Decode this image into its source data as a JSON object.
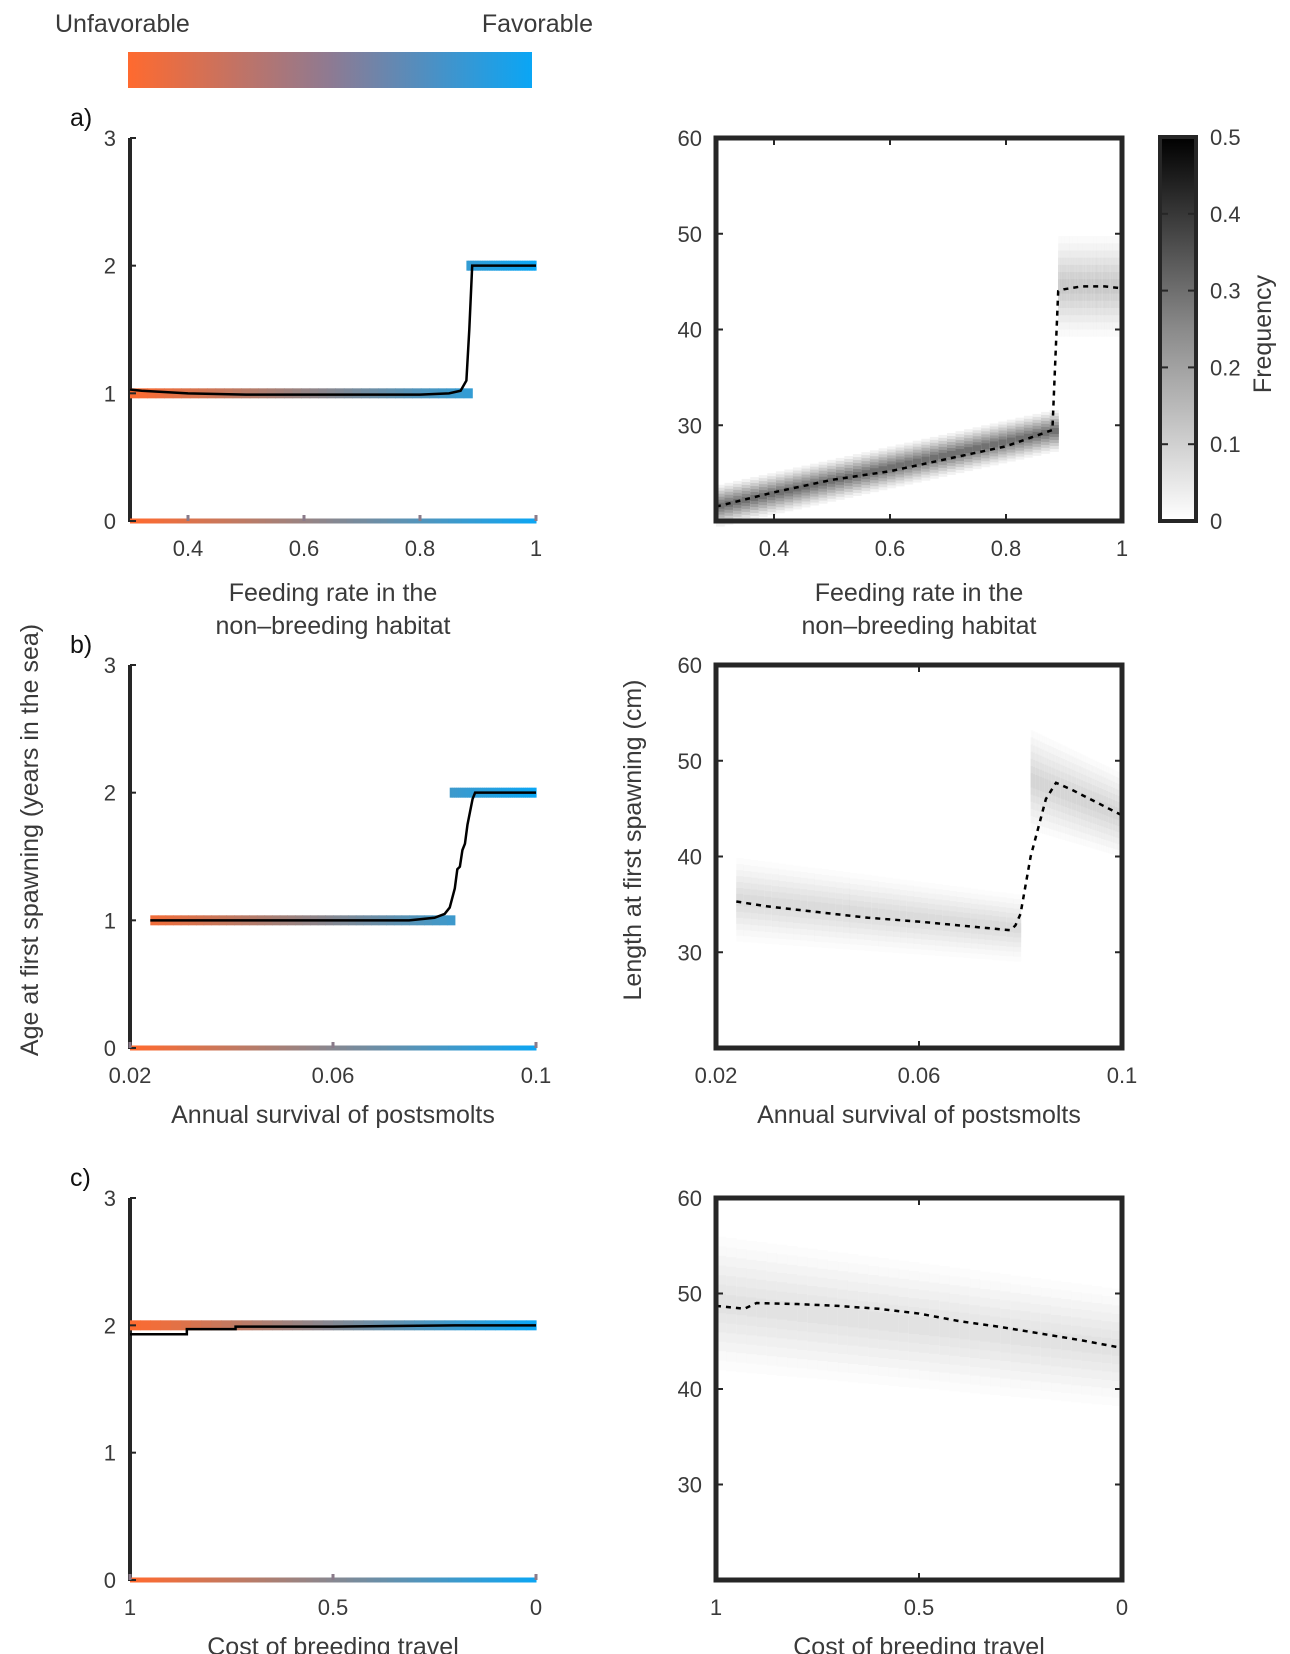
{
  "figure": {
    "favorability_scale": {
      "left_label": "Unfavorable",
      "right_label": "Favorable",
      "colors": {
        "unfavorable": "#ff6a2f",
        "favorable": "#0aa6f5"
      }
    },
    "shared_ylabel_left": "Age at first spawning (years in the sea)",
    "shared_ylabel_right": "Length at first spawning (cm)",
    "colorbar": {
      "label": "Frequency",
      "ticks": [
        "0",
        "0.1",
        "0.2",
        "0.3",
        "0.4",
        "0.5"
      ],
      "range": [
        0,
        0.5
      ],
      "colormap": "white-to-black"
    }
  },
  "chart_data": [
    {
      "id": "a-age",
      "panel_letter": "a)",
      "type": "line",
      "xlabel": [
        "Feeding rate in the",
        "non–breeding habitat"
      ],
      "ylabel": "",
      "xlim": [
        0.3,
        1
      ],
      "ylim": [
        0,
        3
      ],
      "xticks": [
        0.4,
        0.6,
        0.8,
        1
      ],
      "xtick_labels": [
        "0.4",
        "0.6",
        "0.8",
        "1"
      ],
      "yticks": [
        0,
        1,
        2,
        3
      ],
      "ytick_labels": [
        "0",
        "1",
        "2",
        "3"
      ],
      "bands": [
        {
          "y": 1,
          "x": [
            0.3,
            0.89
          ]
        },
        {
          "y": 2,
          "x": [
            0.88,
            1.0
          ]
        }
      ],
      "line": {
        "x": [
          0.3,
          0.32,
          0.4,
          0.5,
          0.6,
          0.7,
          0.8,
          0.85,
          0.87,
          0.88,
          0.885,
          0.89,
          1.0
        ],
        "y": [
          1.03,
          1.02,
          1.0,
          0.99,
          0.99,
          0.99,
          0.99,
          1.0,
          1.02,
          1.1,
          1.5,
          2.0,
          2.0
        ]
      }
    },
    {
      "id": "a-length",
      "type": "heatmap",
      "xlabel": [
        "Feeding rate in the",
        "non–breeding habitat"
      ],
      "ylabel": "",
      "xlim": [
        0.3,
        1
      ],
      "ylim": [
        20,
        60
      ],
      "xticks": [
        0.4,
        0.6,
        0.8,
        1
      ],
      "xtick_labels": [
        "0.4",
        "0.6",
        "0.8",
        "1"
      ],
      "yticks": [
        30,
        40,
        50,
        60
      ],
      "ytick_labels": [
        "30",
        "40",
        "50",
        "60"
      ],
      "mean_line": {
        "x": [
          0.3,
          0.4,
          0.5,
          0.6,
          0.7,
          0.8,
          0.88,
          0.89,
          0.9,
          0.93,
          0.97,
          1.0
        ],
        "y": [
          21.5,
          23.0,
          24.3,
          25.2,
          26.5,
          27.8,
          29.5,
          44.0,
          44.2,
          44.5,
          44.5,
          44.3
        ]
      },
      "density": [
        {
          "x": [
            0.3,
            0.89
          ],
          "center_y": [
            21.5,
            29.5
          ],
          "half_width": [
            2.5,
            2.5
          ],
          "peak": 0.4
        },
        {
          "x": [
            0.89,
            1.0
          ],
          "center_y": [
            44.5,
            44.5
          ],
          "half_width": [
            6,
            6
          ],
          "peak": 0.15
        }
      ]
    },
    {
      "id": "b-age",
      "panel_letter": "b)",
      "type": "line",
      "xlabel": [
        "Annual survival of postsmolts"
      ],
      "ylabel": "",
      "xlim": [
        0.02,
        0.1
      ],
      "ylim": [
        0,
        3
      ],
      "xticks": [
        0.02,
        0.06,
        0.1
      ],
      "xtick_labels": [
        "0.02",
        "0.06",
        "0.1"
      ],
      "yticks": [
        0,
        1,
        2,
        3
      ],
      "ytick_labels": [
        "0",
        "1",
        "2",
        "3"
      ],
      "bands": [
        {
          "y": 1,
          "x": [
            0.024,
            0.084
          ]
        },
        {
          "y": 2,
          "x": [
            0.083,
            0.1
          ]
        }
      ],
      "line": {
        "x": [
          0.024,
          0.05,
          0.075,
          0.08,
          0.082,
          0.083,
          0.084,
          0.0845,
          0.085,
          0.0855,
          0.086,
          0.0865,
          0.087,
          0.0875,
          0.088,
          0.1
        ],
        "y": [
          1.0,
          1.0,
          1.0,
          1.02,
          1.05,
          1.1,
          1.25,
          1.4,
          1.42,
          1.55,
          1.6,
          1.75,
          1.85,
          1.95,
          2.0,
          2.0
        ]
      }
    },
    {
      "id": "b-length",
      "type": "heatmap",
      "xlabel": [
        "Annual survival of postsmolts"
      ],
      "ylabel": "",
      "xlim": [
        0.02,
        0.1
      ],
      "ylim": [
        20,
        60
      ],
      "xticks": [
        0.02,
        0.06,
        0.1
      ],
      "xtick_labels": [
        "0.02",
        "0.06",
        "0.1"
      ],
      "yticks": [
        30,
        40,
        50,
        60
      ],
      "ytick_labels": [
        "30",
        "40",
        "50",
        "60"
      ],
      "mean_line": {
        "x": [
          0.024,
          0.03,
          0.04,
          0.05,
          0.06,
          0.07,
          0.078,
          0.079,
          0.08,
          0.082,
          0.085,
          0.087,
          0.09,
          0.1
        ],
        "y": [
          35.3,
          34.8,
          34.2,
          33.6,
          33.2,
          32.7,
          32.3,
          32.8,
          34.0,
          40.0,
          46.0,
          47.7,
          47.0,
          44.3
        ]
      },
      "density": [
        {
          "x": [
            0.024,
            0.08
          ],
          "center_y": [
            35.5,
            32.5
          ],
          "half_width": [
            5,
            4
          ],
          "peak": 0.1
        },
        {
          "x": [
            0.082,
            0.1
          ],
          "center_y": [
            48,
            44.3
          ],
          "half_width": [
            6,
            5
          ],
          "peak": 0.12
        }
      ]
    },
    {
      "id": "c-age",
      "panel_letter": "c)",
      "type": "line",
      "xlabel": [
        "Cost of breeding travel"
      ],
      "ylabel": "",
      "xlim": [
        1,
        0
      ],
      "ylim": [
        0,
        3
      ],
      "xticks": [
        1,
        0.5,
        0
      ],
      "xtick_labels": [
        "1",
        "0.5",
        "0"
      ],
      "yticks": [
        0,
        1,
        2,
        3
      ],
      "ytick_labels": [
        "0",
        "1",
        "2",
        "3"
      ],
      "bands": [
        {
          "y": 2,
          "x": [
            1.0,
            0.0
          ]
        }
      ],
      "line": {
        "x": [
          1.0,
          0.86,
          0.86,
          0.74,
          0.74,
          0.5,
          0.2,
          0.0
        ],
        "y": [
          1.93,
          1.93,
          1.97,
          1.97,
          1.99,
          1.99,
          2.0,
          2.0
        ]
      }
    },
    {
      "id": "c-length",
      "type": "heatmap",
      "xlabel": [
        "Cost of breeding travel"
      ],
      "ylabel": "",
      "xlim": [
        1,
        0
      ],
      "ylim": [
        20,
        60
      ],
      "xticks": [
        1,
        0.5,
        0
      ],
      "xtick_labels": [
        "1",
        "0.5",
        "0"
      ],
      "yticks": [
        30,
        40,
        50,
        60
      ],
      "ytick_labels": [
        "30",
        "40",
        "50",
        "60"
      ],
      "mean_line": {
        "x": [
          1.0,
          0.93,
          0.9,
          0.8,
          0.7,
          0.6,
          0.5,
          0.4,
          0.3,
          0.2,
          0.1,
          0.0
        ],
        "y": [
          48.7,
          48.4,
          49.0,
          48.9,
          48.7,
          48.4,
          47.9,
          47.1,
          46.5,
          45.8,
          45.1,
          44.3
        ]
      },
      "density": [
        {
          "x": [
            1.0,
            0.0
          ],
          "center_y": [
            49,
            44.3
          ],
          "half_width": [
            8,
            7
          ],
          "peak": 0.08
        }
      ]
    }
  ]
}
